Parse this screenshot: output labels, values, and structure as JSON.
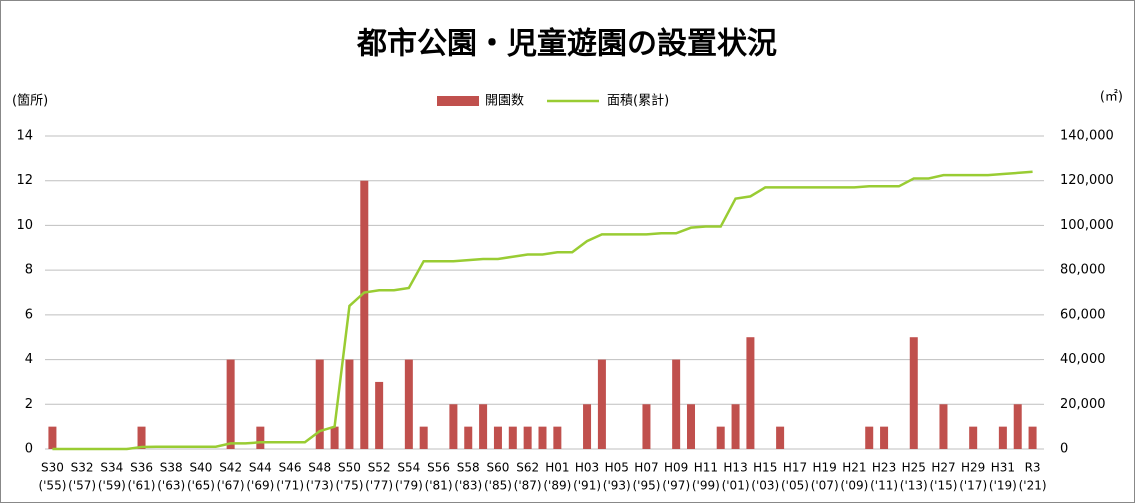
{
  "chart_data": {
    "type": "bar",
    "title": "都市公園・児童遊園の設置状況",
    "y_label": "(箇所)",
    "y2_label": "(㎡)",
    "categories": [
      "S30",
      null,
      "S32",
      null,
      "S34",
      null,
      "S36",
      null,
      "S38",
      null,
      "S40",
      null,
      "S42",
      null,
      "S44",
      null,
      "S46",
      null,
      "S48",
      null,
      "S50",
      null,
      "S52",
      null,
      "S54",
      null,
      "S56",
      null,
      "S58",
      null,
      "S60",
      null,
      "S62",
      null,
      "H01",
      null,
      "H03",
      null,
      "H05",
      null,
      "H07",
      null,
      "H09",
      null,
      "H11",
      null,
      "H13",
      null,
      "H15",
      null,
      "H17",
      null,
      "H19",
      null,
      "H21",
      null,
      "H23",
      null,
      "H25",
      null,
      "H27",
      null,
      "H29",
      null,
      "H31",
      null,
      "R3"
    ],
    "categories_year": [
      "('55)",
      null,
      "('57)",
      null,
      "('59)",
      null,
      "('61)",
      null,
      "('63)",
      null,
      "('65)",
      null,
      "('67)",
      null,
      "('69)",
      null,
      "('71)",
      null,
      "('73)",
      null,
      "('75)",
      null,
      "('77)",
      null,
      "('79)",
      null,
      "('81)",
      null,
      "('83)",
      null,
      "('85)",
      null,
      "('87)",
      null,
      "('89)",
      null,
      "('91)",
      null,
      "('93)",
      null,
      "('95)",
      null,
      "('97)",
      null,
      "('99)",
      null,
      "('01)",
      null,
      "('03)",
      null,
      "('05)",
      null,
      "('07)",
      null,
      "('09)",
      null,
      "('11)",
      null,
      "('13)",
      null,
      "('15)",
      null,
      "('17)",
      null,
      "('19)",
      null,
      "('21)"
    ],
    "series": [
      {
        "name": "開園数",
        "type": "bar",
        "color": "#c0504d",
        "values": [
          1,
          0,
          0,
          0,
          0,
          0,
          1,
          0,
          0,
          0,
          0,
          0,
          4,
          0,
          1,
          0,
          0,
          0,
          4,
          1,
          4,
          12,
          3,
          0,
          4,
          1,
          0,
          2,
          1,
          2,
          1,
          1,
          1,
          1,
          1,
          0,
          2,
          4,
          0,
          0,
          2,
          0,
          4,
          2,
          0,
          1,
          2,
          5,
          0,
          1,
          0,
          0,
          0,
          0,
          0,
          1,
          1,
          0,
          5,
          0,
          2,
          0,
          1,
          0,
          1,
          2,
          1
        ]
      },
      {
        "name": "面積(累計)",
        "type": "line",
        "axis": "y2",
        "color": "#99cc33",
        "values": [
          0,
          0,
          0,
          0,
          0,
          0,
          900,
          1000,
          1000,
          1000,
          1000,
          1000,
          2500,
          2500,
          3000,
          3000,
          3000,
          3000,
          8000,
          10000,
          64000,
          70000,
          71000,
          71000,
          72000,
          84000,
          84000,
          84000,
          84500,
          85000,
          85000,
          86000,
          87000,
          87000,
          88000,
          88000,
          93000,
          96000,
          96000,
          96000,
          96000,
          96500,
          96500,
          99000,
          99500,
          99500,
          112000,
          113000,
          117000,
          117000,
          117000,
          117000,
          117000,
          117000,
          117000,
          117500,
          117500,
          117500,
          121000,
          121000,
          122500,
          122500,
          122500,
          122500,
          123000,
          123500,
          124000
        ]
      }
    ],
    "ylim": [
      0,
      14
    ],
    "yticks": [
      0,
      2,
      4,
      6,
      8,
      10,
      12,
      14
    ],
    "y2lim": [
      0,
      140000
    ],
    "y2ticks": [
      0,
      {
        "value": 20000,
        "label": "20,000"
      },
      {
        "value": 40000,
        "label": "40,000"
      },
      {
        "value": 60000,
        "label": "60,000"
      },
      {
        "value": 80000,
        "label": "80,000"
      },
      {
        "value": 100000,
        "label": "100,000"
      },
      {
        "value": 120000,
        "label": "120,000"
      },
      {
        "value": 140000,
        "label": "140,000"
      }
    ],
    "grid": true,
    "legend": "top"
  }
}
